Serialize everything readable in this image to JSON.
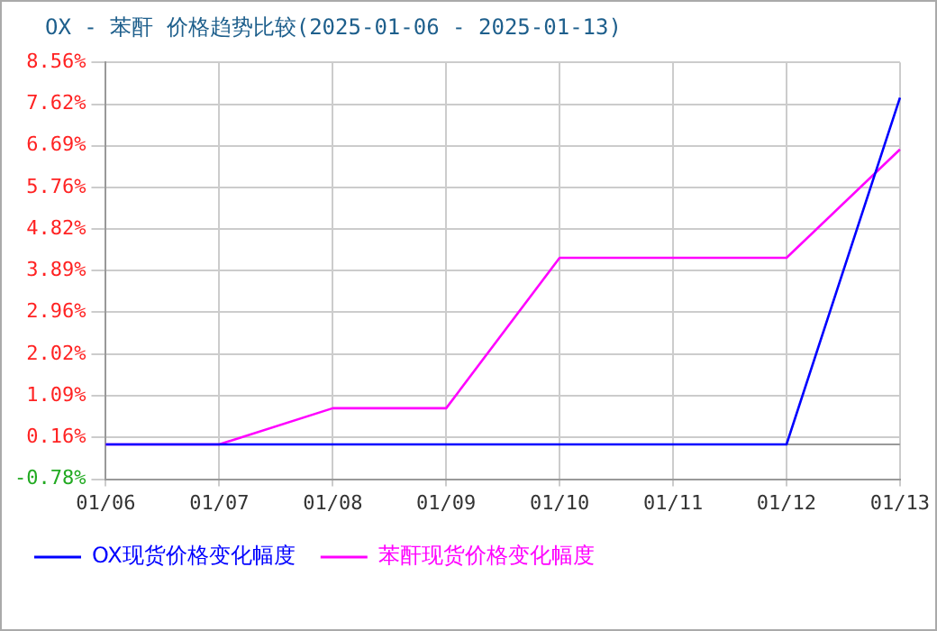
{
  "chart_data": {
    "type": "line",
    "title": "OX - 苯酐 价格趋势比较(2025-01-06 - 2025-01-13)",
    "categories": [
      "01/06",
      "01/07",
      "01/08",
      "01/09",
      "01/10",
      "01/11",
      "01/12",
      "01/13"
    ],
    "series": [
      {
        "name": "OX现货价格变化幅度",
        "color": "#0000ff",
        "values": [
          0,
          0,
          0,
          0,
          0,
          0,
          0,
          7.77
        ]
      },
      {
        "name": "苯酐现货价格变化幅度",
        "color": "#ff00ff",
        "values": [
          0,
          0,
          0.81,
          0.81,
          4.18,
          4.18,
          4.18,
          6.61
        ]
      }
    ],
    "ylim": [
      -0.78,
      8.56
    ],
    "yticks": [
      {
        "value": -0.78,
        "label": "-0.78%"
      },
      {
        "value": 0.16,
        "label": "0.16%"
      },
      {
        "value": 1.09,
        "label": "1.09%"
      },
      {
        "value": 2.02,
        "label": "2.02%"
      },
      {
        "value": 2.96,
        "label": "2.96%"
      },
      {
        "value": 3.89,
        "label": "3.89%"
      },
      {
        "value": 4.82,
        "label": "4.82%"
      },
      {
        "value": 5.76,
        "label": "5.76%"
      },
      {
        "value": 6.69,
        "label": "6.69%"
      },
      {
        "value": 7.62,
        "label": "7.62%"
      },
      {
        "value": 8.56,
        "label": "8.56%"
      }
    ],
    "ref_lines": [
      {
        "axis": "y",
        "value": 0,
        "color": "#999999"
      }
    ],
    "grid": true,
    "legend": "bottom",
    "marker": "none",
    "line_style": "solid"
  }
}
